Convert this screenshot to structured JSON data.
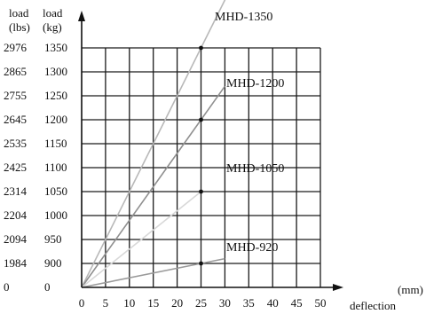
{
  "chart_data": {
    "type": "line",
    "headers": {
      "lbs": [
        "load",
        "(lbs)"
      ],
      "kg": [
        "load",
        "(kg)"
      ]
    },
    "xlabel": "deflection",
    "xunit": "(mm)",
    "x_ticks": [
      0,
      5,
      10,
      15,
      20,
      25,
      30,
      35,
      40,
      45,
      50
    ],
    "y_ticks_kg": [
      "0",
      "900",
      "950",
      "1000",
      "1050",
      "1100",
      "1150",
      "1200",
      "1250",
      "1300",
      "1350"
    ],
    "y_ticks_lbs": [
      "0",
      "1984",
      "2094",
      "2204",
      "2314",
      "2425",
      "2535",
      "2645",
      "2755",
      "2865",
      "2976"
    ],
    "grid": true,
    "series": [
      {
        "name": "MHD-1350",
        "x": [
          0,
          25,
          31
        ],
        "y": [
          0,
          10,
          12.4
        ],
        "color": "#b8b8b8",
        "marker_x": 25,
        "marker_y": 10
      },
      {
        "name": "MHD-1200",
        "x": [
          0,
          25,
          30
        ],
        "y": [
          0,
          7,
          8.4
        ],
        "color": "#909090",
        "marker_x": 25,
        "marker_y": 7
      },
      {
        "name": "MHD-1050",
        "x": [
          0,
          25
        ],
        "y": [
          0,
          4
        ],
        "color": "#d8d8d8",
        "marker_x": 25,
        "marker_y": 4
      },
      {
        "name": "MHD-920",
        "x": [
          0,
          25,
          30
        ],
        "y": [
          0,
          1,
          1.2
        ],
        "color": "#9a9a9a",
        "marker_x": 25,
        "marker_y": 1
      }
    ]
  }
}
